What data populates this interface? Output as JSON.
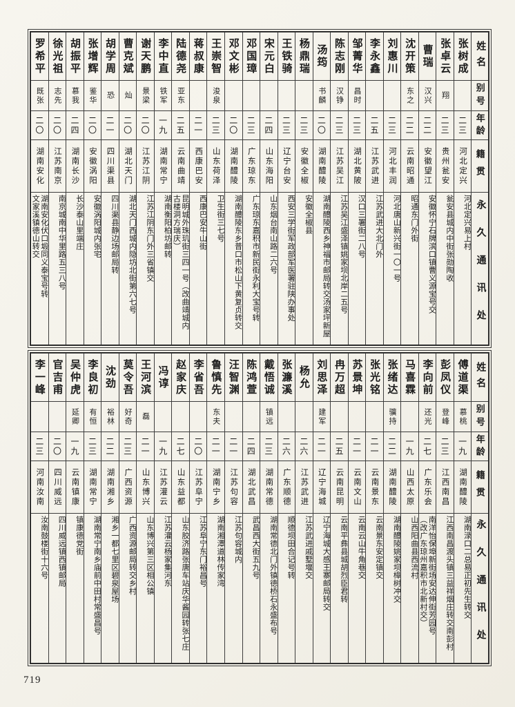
{
  "page": {
    "number": "719"
  },
  "headers": {
    "name": "姓名",
    "alias": "别号",
    "age": "年龄",
    "native": "籍贯",
    "address": "永久通讯处"
  },
  "sections": [
    {
      "entries": [
        {
          "name": "张树成",
          "alias": "",
          "age": "二三",
          "native": "河北定兴",
          "address": "河北定兴易上村"
        },
        {
          "name": "张卓云",
          "alias": "翔",
          "age": "二三",
          "native": "贵州瓮安",
          "address": "瓮安县城内中街张勋陶收"
        },
        {
          "name": "曹瑞",
          "alias": "汉兴",
          "age": "二二",
          "native": "安徽望江",
          "address": "安徽怀宁石牌滨口镇曹义源宝号交"
        },
        {
          "name": "沈开策",
          "alias": "东之",
          "age": "二二",
          "native": "云南昭通",
          "address": "昭通东门外街"
        },
        {
          "name": "刘惠川",
          "alias": "",
          "age": "二三",
          "native": "河北丰润",
          "address": "河北唐山新兴街一〇一号"
        },
        {
          "name": "李永鑫",
          "alias": "",
          "age": "二五",
          "native": "江苏武进",
          "address": "江苏武进大北门外"
        },
        {
          "name": "邹菁华",
          "alias": "昌时",
          "age": "二三",
          "native": "湖北黄陂",
          "address": "汉口三署街二八号"
        },
        {
          "name": "陈志刚",
          "alias": "汉铮",
          "age": "二三",
          "native": "江苏吴江",
          "address": "江苏吴江盛泽镇姚家坝北岸二五号"
        },
        {
          "name": "汤筠",
          "alias": "书麟",
          "age": "二〇",
          "native": "湖南醴陵",
          "address": "湖南醴陵西乡神福市邮局转交汤家坪新屋"
        },
        {
          "name": "杨鼎瑞",
          "alias": "",
          "age": "二三",
          "native": "安徽全椒",
          "address": "安徽全椒县"
        },
        {
          "name": "王铁骑",
          "alias": "",
          "age": "二三",
          "native": "辽宁台安",
          "address": "西安三学街军政部军医署驻陕办事处"
        },
        {
          "name": "宋元白",
          "alias": "",
          "age": "二四",
          "native": "山东海阳",
          "address": "山东烟台南山路二六号"
        },
        {
          "name": "邓国璋",
          "alias": "",
          "age": "二三",
          "native": "广东琼东",
          "address": "广东琼东嘉积市新民街永利大宝号转"
        },
        {
          "name": "邓文彬",
          "alias": "",
          "age": "二〇",
          "native": "湖南醴陵",
          "address": "湖南醴陵东乡普口市松山下黄复贞转交"
        },
        {
          "name": "王崇智",
          "alias": "浚泉",
          "age": "二三",
          "native": "山东荷泽",
          "address": "卫生街三七号"
        },
        {
          "name": "蒋叔康",
          "alias": "",
          "age": "二一",
          "native": "西康巴安",
          "address": "西康巴安牛山街"
        },
        {
          "name": "陆德尧",
          "alias": "亚东",
          "age": "二五",
          "native": "云南曲靖",
          "address": "昆明城外珠玑街三四一号（改曲靖城内\n古楼洞方瑞庆）"
        },
        {
          "name": "李中直",
          "alias": "铁军",
          "age": "一九",
          "native": "湖南常宁",
          "address": "湖南衡阳柏坊邮转"
        },
        {
          "name": "谢天鹏",
          "alias": "景梁",
          "age": "二〇",
          "native": "江苏江阴",
          "address": "江苏江阴东门外三省镇交"
        },
        {
          "name": "曹克斌",
          "alias": "灿",
          "age": "二〇",
          "native": "湖北天门",
          "address": "湖北天门西城内隐坊北街第六七号"
        },
        {
          "name": "胡学周",
          "alias": "恐",
          "age": "二一",
          "native": "四川渠县",
          "address": "四川渠县静边场邮局转"
        },
        {
          "name": "张增辉",
          "alias": "鉴华",
          "age": "二〇",
          "native": "安徽涡阳",
          "address": "安徽涡阳城内张宅"
        },
        {
          "name": "胡振平",
          "alias": "慕我",
          "age": "二四",
          "native": "湖南长沙",
          "address": "长沙泰山里端庄"
        },
        {
          "name": "徐光祖",
          "alias": "志先",
          "age": "二〇",
          "native": "江苏南京",
          "address": "南京城南中华里路五三八号"
        },
        {
          "name": "罗希平",
          "alias": "既张",
          "age": "二〇",
          "native": "湖南安化",
          "address": "湖南安化伏口塅同义泰宝号转\n文家溪镇德山转交"
        }
      ]
    },
    {
      "entries": [
        {
          "name": "傅道渠",
          "alias": "慕桃",
          "age": "一九",
          "native": "湖南醴陵",
          "address": "湖南渌口二总易正初先生转交"
        },
        {
          "name": "彭凤仪",
          "alias": "登峰",
          "age": "二三",
          "native": "江西南昌",
          "address": "江西南昌渡头镇三益祥烟庄转交南彭村"
        },
        {
          "name": "李向前",
          "alias": "还光",
          "age": "二七",
          "native": "广东乐会",
          "address": "南洋怡保埠新街场安达伸街芳园号\n（改广东琼州嘉积市北新村交）"
        },
        {
          "name": "马喜霖",
          "alias": "",
          "age": "一九",
          "native": "山西太原",
          "address": "山西阳曲县西流村"
        },
        {
          "name": "张绪达",
          "alias": "骥持",
          "age": "二二",
          "native": "湖南醴陵",
          "address": "湖南醴陵姚家坝樟树冲交"
        },
        {
          "name": "张光铭",
          "alias": "",
          "age": "二一",
          "native": "云南景东",
          "address": "云南景东安定镇交"
        },
        {
          "name": "苏景坤",
          "alias": "",
          "age": "二一",
          "native": "云南文山",
          "address": "云南云山牛角巷交"
        },
        {
          "name": "冉万超",
          "alias": "",
          "age": "二五",
          "native": "云南昆明",
          "address": "云南平彝县城胡烈臣君转"
        },
        {
          "name": "刘思泽",
          "alias": "建军",
          "age": "二一",
          "native": "辽宁海城",
          "address": "辽宁海城大感王寨邮局转交"
        },
        {
          "name": "杨允",
          "alias": "",
          "age": "二六",
          "native": "江苏武进",
          "address": "江苏武进戚墅堰交"
        },
        {
          "name": "张濂溪",
          "alias": "",
          "age": "二六",
          "native": "广东顺德",
          "address": "顺德坝田合记号转"
        },
        {
          "name": "戴悟诚",
          "alias": "镇远",
          "age": "二三",
          "native": "湖南常德",
          "address": "湖南常德北门外镇德桥石永盛布号"
        },
        {
          "name": "陈鸿萱",
          "alias": "",
          "age": "二四",
          "native": "湖北武昌",
          "address": "武昌西大街五九号"
        },
        {
          "name": "汪智渊",
          "alias": "",
          "age": "二一",
          "native": "江苏句容",
          "address": "江苏句容城内"
        },
        {
          "name": "鲁慎先",
          "alias": "东夫",
          "age": "二一",
          "native": "湖南宁乡",
          "address": "湖南湘潭道林传家湾"
        },
        {
          "name": "李省吾",
          "alias": "",
          "age": "二〇",
          "native": "江苏阜宁",
          "address": "江苏阜宁东门裕昌号"
        },
        {
          "name": "赵家庆",
          "alias": "",
          "age": "二七",
          "native": "山东益都",
          "address": "山东胶济路张唐车站庆华酱园转张七庄"
        },
        {
          "name": "冯谆",
          "alias": "",
          "age": "一九",
          "native": "江苏灌云",
          "address": "江苏灌云杨家集河东"
        },
        {
          "name": "王河滨",
          "alias": "磊",
          "age": "二一",
          "native": "山东博兴",
          "address": "山东博兴第三区相公镇"
        },
        {
          "name": "莫令吾",
          "alias": "好奇",
          "age": "二三",
          "native": "广西资源",
          "address": "广西资源邮局转交乡村"
        },
        {
          "name": "沈劲",
          "alias": "裕林",
          "age": "二二",
          "native": "湖南湘乡",
          "address": "湘乡一都七里区碧泉屋场"
        },
        {
          "name": "李良初",
          "alias": "有恒",
          "age": "二三",
          "native": "湖南常宁",
          "address": "湖南常宁南乡庙前中田村常盛昌号"
        },
        {
          "name": "吴仲虎",
          "alias": "延卿",
          "age": "一九",
          "native": "云南镇康",
          "address": "镇康德党街"
        },
        {
          "name": "官吉甫",
          "alias": "",
          "age": "二〇",
          "native": "四川威远",
          "address": "四川威远镇西镇邮局"
        },
        {
          "name": "李一峰",
          "alias": "",
          "age": "二三",
          "native": "河南汝南",
          "address": "汝南鼓楼街十六号"
        }
      ]
    }
  ]
}
